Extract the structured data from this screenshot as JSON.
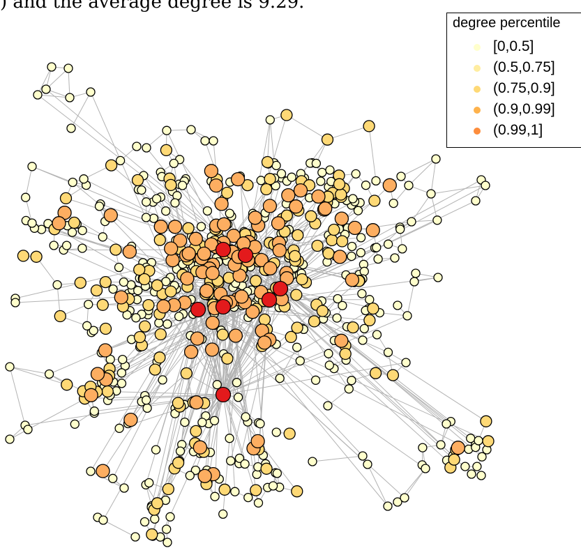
{
  "caption": ") and the average degree is 9.29.",
  "legend": {
    "title": "degree percentile",
    "entries": [
      {
        "label": "[0,0.5]",
        "color": "#ffffcc"
      },
      {
        "label": "(0.5,0.75]",
        "color": "#ffeda0"
      },
      {
        "label": "(0.75,0.9]",
        "color": "#fed976"
      },
      {
        "label": "(0.9,0.99]",
        "color": "#feb24c"
      },
      {
        "label": "(0.99,1]",
        "color": "#fd8d3c"
      }
    ]
  },
  "colors": {
    "edge": "#b3b3b3",
    "node_outline": "#000000",
    "low": "#ffffcc",
    "mid": "#fed976",
    "high": "#fdae61",
    "top": "#e31a1c"
  }
}
